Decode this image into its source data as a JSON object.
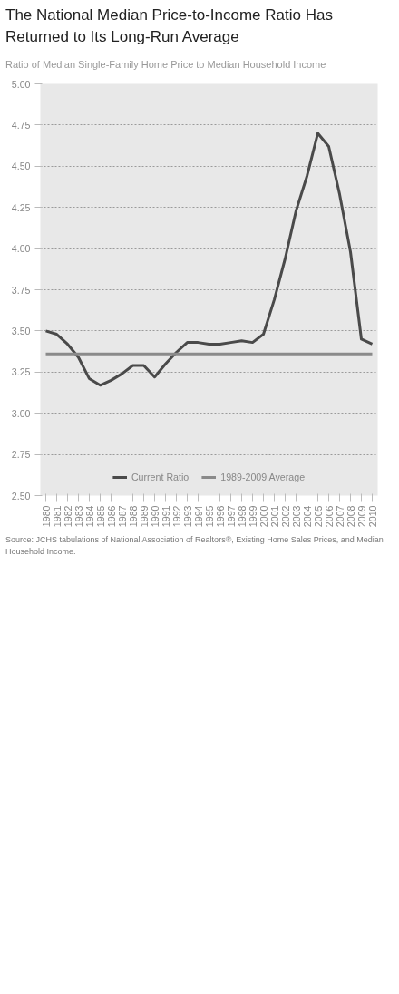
{
  "chart_data": {
    "type": "line",
    "title": "The National Median Price-to-Income Ratio Has Returned to Its Long-Run Average",
    "subtitle": "Ratio of Median Single-Family Home Price to Median Household Income",
    "x": [
      1980,
      1981,
      1982,
      1983,
      1984,
      1985,
      1986,
      1987,
      1988,
      1989,
      1990,
      1991,
      1992,
      1993,
      1994,
      1995,
      1996,
      1997,
      1998,
      1999,
      2000,
      2001,
      2002,
      2003,
      2004,
      2005,
      2006,
      2007,
      2008,
      2009,
      2010
    ],
    "series": [
      {
        "name": "Current Ratio",
        "color": "#4a4a4a",
        "values": [
          3.5,
          3.48,
          3.42,
          3.34,
          3.21,
          3.17,
          3.2,
          3.24,
          3.29,
          3.29,
          3.22,
          3.3,
          3.37,
          3.43,
          3.43,
          3.42,
          3.42,
          3.43,
          3.44,
          3.43,
          3.48,
          3.69,
          3.94,
          4.23,
          4.44,
          4.7,
          4.62,
          4.33,
          3.98,
          3.45,
          3.42
        ]
      },
      {
        "name": "1989-2009 Average",
        "color": "#8a8a8a",
        "values": [
          3.36,
          3.36,
          3.36,
          3.36,
          3.36,
          3.36,
          3.36,
          3.36,
          3.36,
          3.36,
          3.36,
          3.36,
          3.36,
          3.36,
          3.36,
          3.36,
          3.36,
          3.36,
          3.36,
          3.36,
          3.36,
          3.36,
          3.36,
          3.36,
          3.36,
          3.36,
          3.36,
          3.36,
          3.36,
          3.36,
          3.36
        ]
      }
    ],
    "xlim": [
      1979.5,
      2010.5
    ],
    "xticks": [
      1980,
      1981,
      1982,
      1983,
      1984,
      1985,
      1986,
      1987,
      1988,
      1989,
      1990,
      1991,
      1992,
      1993,
      1994,
      1995,
      1996,
      1997,
      1998,
      1999,
      2000,
      2001,
      2002,
      2003,
      2004,
      2005,
      2006,
      2007,
      2008,
      2009,
      2010
    ],
    "ylim": [
      2.5,
      5.0
    ],
    "yticks": [
      {
        "value": 2.5,
        "label": "2.50"
      },
      2.75,
      {
        "value": 3.0,
        "label": "3.00"
      },
      3.25,
      {
        "value": 3.5,
        "label": "3.50"
      },
      3.75,
      {
        "value": 4.0,
        "label": "4.00"
      },
      4.25,
      {
        "value": 4.5,
        "label": "4.50"
      },
      4.75,
      {
        "value": 5.0,
        "label": "5.00"
      }
    ],
    "grid": "y",
    "legend": "bottom",
    "marker": "none",
    "line_style": "solid",
    "annotations": [
      "Source: JCHS tabulations of National Association of Realtors®, Existing Home Sales Prices, and Median Household Income."
    ]
  }
}
